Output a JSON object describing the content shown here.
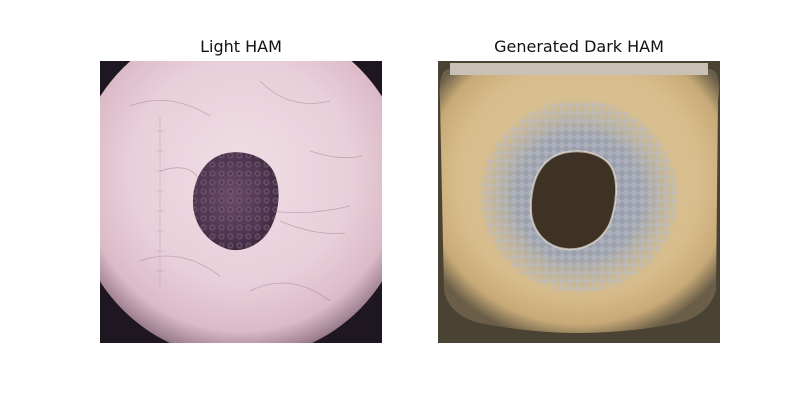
{
  "figure": {
    "panels": [
      {
        "title": "Light HAM"
      },
      {
        "title": "Generated Dark HAM"
      }
    ]
  }
}
